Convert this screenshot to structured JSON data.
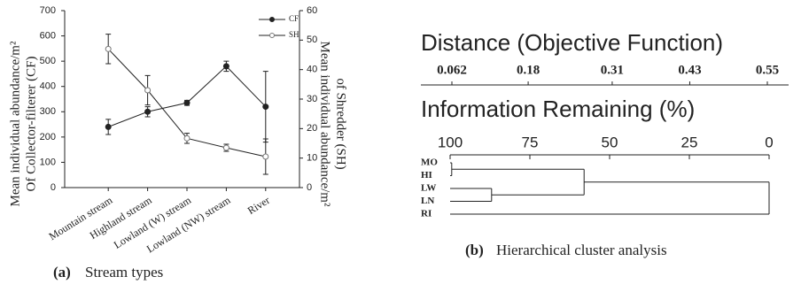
{
  "chart_data": [
    {
      "type": "line",
      "label": "(a)",
      "caption": "Stream types",
      "categories": [
        "Mountain stream",
        "Highland stream",
        "Lowland (W) stream",
        "Lowland (NW) stream",
        "River"
      ],
      "ylabel": [
        "Mean individual abundance/m²",
        "Of Collector-filterer (CF)"
      ],
      "y2label": [
        "Mean individual abundance/m²",
        "of Shredder (SH)"
      ],
      "ylim": [
        0,
        700
      ],
      "yticks": [
        0,
        100,
        200,
        300,
        400,
        500,
        600,
        700
      ],
      "y2lim": [
        0,
        60
      ],
      "y2ticks": [
        0,
        10,
        20,
        30,
        40,
        50,
        60
      ],
      "legend": "top-right",
      "series": [
        {
          "name": "CF",
          "color": "#222222",
          "marker": "filled",
          "values": [
            240,
            300,
            335,
            480,
            320
          ],
          "errors": [
            30,
            20,
            10,
            20,
            140
          ]
        },
        {
          "name": "SH",
          "color": "#777777",
          "marker": "open",
          "axis": "y2",
          "values": [
            47,
            33,
            16.7,
            13.5,
            10.5
          ],
          "errors": [
            5,
            5,
            1.7,
            1.2,
            6
          ]
        }
      ]
    },
    {
      "type": "dendrogram",
      "label": "(b)",
      "caption": "Hierarchical cluster analysis",
      "x2label": "Distance (Objective Function)",
      "x2lim": [
        0.062,
        0.55
      ],
      "x2ticks": [
        0.062,
        0.18,
        0.31,
        0.43,
        0.55
      ],
      "xlabel": "Information Remaining (%)",
      "xlim": [
        100,
        0
      ],
      "xticks": [
        100,
        75,
        50,
        25,
        0
      ],
      "leaves": [
        "MO",
        "HI",
        "LW",
        "LN",
        "RI"
      ],
      "merges": [
        {
          "children": [
            0,
            1
          ],
          "value": 99.5
        },
        {
          "children": [
            2,
            3
          ],
          "value": 87
        },
        {
          "children": [
            5,
            6
          ],
          "value": 58
        },
        {
          "children": [
            7,
            4
          ],
          "value": 0
        }
      ]
    }
  ]
}
